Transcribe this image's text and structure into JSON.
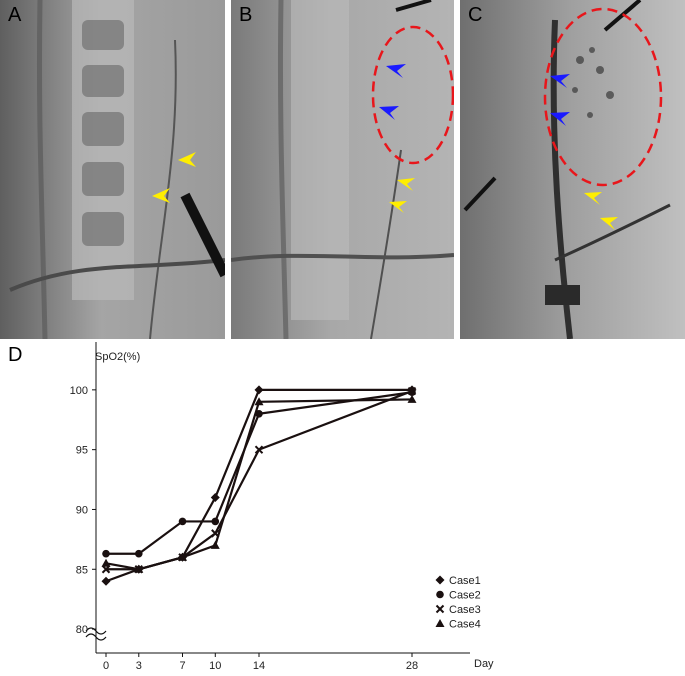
{
  "panels": [
    {
      "label": "A"
    },
    {
      "label": "B"
    },
    {
      "label": "C"
    },
    {
      "label": "D"
    }
  ],
  "colors": {
    "arrow_yellow": "#ffee00",
    "arrow_blue": "#1a1aff",
    "ellipse_red": "#e8161b",
    "line_dark": "#1a1010"
  },
  "chart_data": {
    "type": "line",
    "ylabel": "SpO2(%)",
    "xlabel": "Day",
    "x": [
      0,
      3,
      7,
      10,
      14,
      28
    ],
    "x_ticks": [
      "0",
      "3",
      "7",
      "10",
      "14",
      "28"
    ],
    "y_ticks": [
      "80",
      "85",
      "90",
      "95",
      "100"
    ],
    "ylim": [
      78,
      104
    ],
    "axis_break": true,
    "legend_position": "bottom-right",
    "series": [
      {
        "name": "Case1",
        "marker": "diamond",
        "values": [
          84,
          85,
          86,
          91,
          100,
          100
        ]
      },
      {
        "name": "Case2",
        "marker": "circle",
        "values": [
          86.3,
          86.3,
          89,
          89,
          98,
          99.8
        ]
      },
      {
        "name": "Case3",
        "marker": "cross",
        "values": [
          85,
          85,
          86,
          88,
          95,
          99.9
        ]
      },
      {
        "name": "Case4",
        "marker": "triangle",
        "values": [
          85.5,
          85,
          86,
          87,
          99,
          99.2
        ]
      }
    ]
  }
}
